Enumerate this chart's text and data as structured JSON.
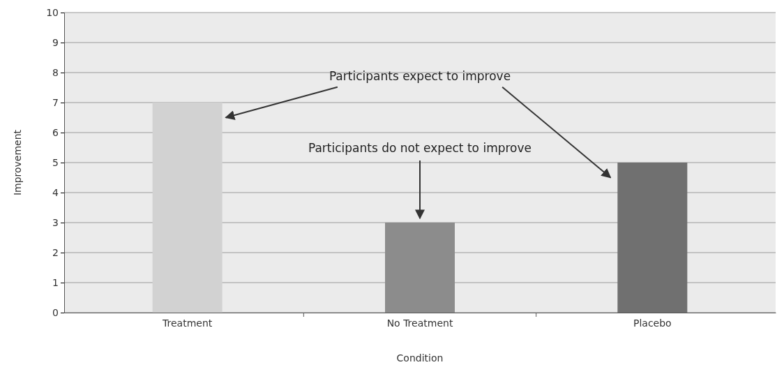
{
  "chart_data": {
    "type": "bar",
    "xlabel": "Condition",
    "ylabel": "Improvement",
    "categories": [
      "Treatment",
      "No Treatment",
      "Placebo"
    ],
    "values": [
      7,
      3,
      5
    ],
    "colors": [
      "#d2d2d2",
      "#8c8c8c",
      "#707070"
    ],
    "ylim": [
      0,
      10
    ],
    "yticks": [
      0,
      1,
      2,
      3,
      4,
      5,
      6,
      7,
      8,
      9,
      10
    ],
    "grid": "y",
    "annotations": [
      "Participants expect to improve",
      "Participants do not expect to improve"
    ]
  }
}
